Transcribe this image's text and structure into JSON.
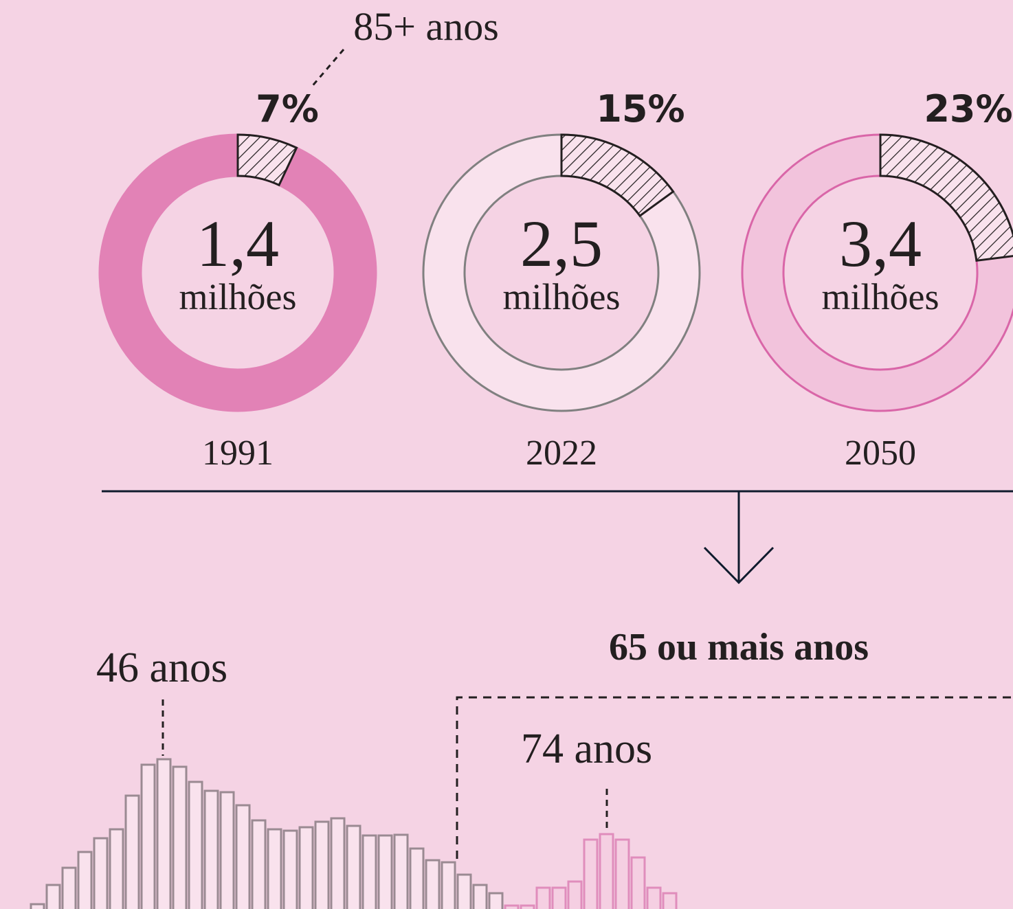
{
  "annotation": "85+ anos",
  "donuts": [
    {
      "year": "1991",
      "total": "1,4",
      "unit": "milhões",
      "share": 7,
      "share_label": "7%",
      "fill": "#e282b6",
      "stroke": "#e282b6"
    },
    {
      "year": "2022",
      "total": "2,5",
      "unit": "milhões",
      "share": 15,
      "share_label": "15%",
      "fill": "#f9e2ed",
      "stroke": "#808080"
    },
    {
      "year": "2050",
      "total": "3,4",
      "unit": "milhões",
      "share": 23,
      "share_label": "23%",
      "fill": "#f2c3dc",
      "stroke": "#d966a8"
    }
  ],
  "arrow_label": "65 ou mais anos",
  "peak_labels": [
    "46 anos",
    "74 anos"
  ],
  "histogram": {
    "groups": [
      {
        "fill": "#f9e2ed",
        "stroke": "#9a8a92",
        "values": [
          7,
          35,
          60,
          83,
          103,
          116,
          165,
          210,
          218,
          207,
          185,
          172,
          170,
          151,
          129,
          116,
          114,
          119,
          127,
          132,
          121,
          107,
          107,
          108,
          88,
          71,
          68,
          50,
          35,
          23
        ]
      },
      {
        "fill": "#f5cfe2",
        "stroke": "#e08dbc",
        "values": [
          5,
          5,
          31,
          31,
          40,
          101,
          109,
          101,
          75,
          31,
          23
        ]
      }
    ]
  }
}
